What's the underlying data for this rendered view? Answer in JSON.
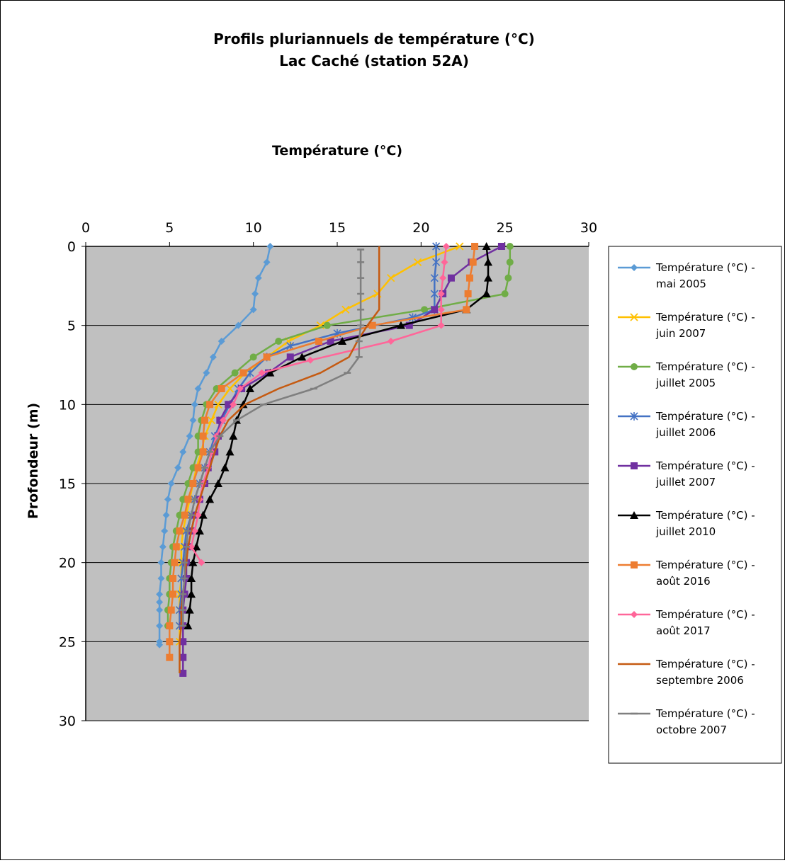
{
  "chart_data": {
    "type": "line",
    "title": [
      "Profils pluriannuels de température (°C)",
      "Lac Caché (station 52A)"
    ],
    "xlabel": "Température (°C)",
    "ylabel": "Profondeur (m)",
    "xlim": [
      0,
      30
    ],
    "ylim": [
      0,
      30
    ],
    "y_inverted": true,
    "x_axis_position": "top",
    "x_ticks": [
      "0",
      "5",
      "10",
      "15",
      "20",
      "25",
      "30"
    ],
    "y_ticks": [
      "0",
      "5",
      "10",
      "15",
      "20",
      "25",
      "30"
    ],
    "grid": "horizontal",
    "plot_background": "#c0c0c0",
    "legend_position": "right",
    "series": [
      {
        "name": [
          "Température (°C) -",
          "mai 2005"
        ],
        "color": "#5b9bd5",
        "marker": "diamond",
        "points": [
          [
            11.0,
            0
          ],
          [
            10.8,
            1
          ],
          [
            10.3,
            2
          ],
          [
            10.1,
            3
          ],
          [
            10.0,
            4
          ],
          [
            9.1,
            5
          ],
          [
            8.1,
            6
          ],
          [
            7.6,
            7
          ],
          [
            7.2,
            8
          ],
          [
            6.7,
            9
          ],
          [
            6.5,
            10
          ],
          [
            6.4,
            11
          ],
          [
            6.2,
            12
          ],
          [
            5.8,
            13
          ],
          [
            5.5,
            14
          ],
          [
            5.1,
            15
          ],
          [
            4.9,
            16
          ],
          [
            4.8,
            17
          ],
          [
            4.7,
            18
          ],
          [
            4.6,
            19
          ],
          [
            4.5,
            20
          ],
          [
            4.5,
            21
          ],
          [
            4.4,
            22
          ],
          [
            4.4,
            22.5
          ],
          [
            4.4,
            23
          ],
          [
            4.4,
            24
          ],
          [
            4.4,
            25
          ],
          [
            4.4,
            25.2
          ]
        ]
      },
      {
        "name": [
          "Température (°C) -",
          "juin 2007"
        ],
        "color": "#ffc000",
        "marker": "x",
        "points": [
          [
            22.3,
            0
          ],
          [
            19.8,
            1
          ],
          [
            18.2,
            2
          ],
          [
            17.4,
            3
          ],
          [
            15.5,
            4
          ],
          [
            14.0,
            5
          ],
          [
            12.1,
            6
          ],
          [
            10.8,
            7
          ],
          [
            9.5,
            8
          ],
          [
            8.6,
            9
          ],
          [
            7.9,
            10
          ],
          [
            7.5,
            11
          ],
          [
            7.1,
            12
          ],
          [
            6.9,
            13
          ],
          [
            6.6,
            14
          ],
          [
            6.4,
            15
          ],
          [
            6.2,
            16
          ],
          [
            6.0,
            17
          ],
          [
            5.8,
            18
          ],
          [
            5.7,
            19
          ],
          [
            5.7,
            20
          ],
          [
            5.7,
            21
          ],
          [
            5.6,
            22
          ],
          [
            5.6,
            23
          ],
          [
            5.6,
            24
          ],
          [
            5.6,
            25
          ]
        ]
      },
      {
        "name": [
          "Température (°C) -",
          "juillet 2005"
        ],
        "color": "#70ad47",
        "marker": "circle",
        "points": [
          [
            25.3,
            0
          ],
          [
            25.3,
            1
          ],
          [
            25.2,
            2
          ],
          [
            25.0,
            3
          ],
          [
            20.2,
            4
          ],
          [
            14.4,
            5
          ],
          [
            11.5,
            6
          ],
          [
            10.0,
            7
          ],
          [
            8.9,
            8
          ],
          [
            7.8,
            9
          ],
          [
            7.2,
            10
          ],
          [
            6.9,
            11
          ],
          [
            6.7,
            12
          ],
          [
            6.7,
            13
          ],
          [
            6.4,
            14
          ],
          [
            6.1,
            15
          ],
          [
            5.8,
            16
          ],
          [
            5.6,
            17
          ],
          [
            5.4,
            18
          ],
          [
            5.2,
            19
          ],
          [
            5.1,
            20
          ],
          [
            5.0,
            21
          ],
          [
            5.0,
            22
          ],
          [
            4.9,
            23
          ],
          [
            4.9,
            24
          ]
        ]
      },
      {
        "name": [
          "Température (°C) -",
          "juillet 2006"
        ],
        "color": "#4472c4",
        "marker": "star",
        "points": [
          [
            20.9,
            0
          ],
          [
            20.9,
            1
          ],
          [
            20.8,
            2
          ],
          [
            20.8,
            3
          ],
          [
            20.8,
            4
          ],
          [
            19.5,
            4.5
          ],
          [
            15.0,
            5.5
          ],
          [
            12.2,
            6.3
          ],
          [
            10.8,
            7.0
          ],
          [
            9.8,
            8
          ],
          [
            9.1,
            9
          ],
          [
            8.6,
            10
          ],
          [
            8.1,
            11
          ],
          [
            7.7,
            12
          ],
          [
            7.4,
            13
          ],
          [
            7.1,
            14
          ],
          [
            6.8,
            15
          ],
          [
            6.5,
            16
          ],
          [
            6.3,
            17
          ],
          [
            6.0,
            18
          ],
          [
            5.9,
            19
          ],
          [
            5.8,
            20
          ],
          [
            5.7,
            21
          ],
          [
            5.7,
            22
          ],
          [
            5.6,
            23
          ],
          [
            5.6,
            24
          ]
        ]
      },
      {
        "name": [
          "Température (°C) -",
          "juillet 2007"
        ],
        "color": "#7030a0",
        "marker": "square",
        "points": [
          [
            24.8,
            0
          ],
          [
            23.0,
            1
          ],
          [
            21.8,
            2
          ],
          [
            21.3,
            3
          ],
          [
            20.8,
            4
          ],
          [
            19.3,
            5
          ],
          [
            14.6,
            6
          ],
          [
            12.2,
            7
          ],
          [
            10.9,
            8
          ],
          [
            9.3,
            9
          ],
          [
            8.5,
            10
          ],
          [
            8.0,
            11
          ],
          [
            7.9,
            12
          ],
          [
            7.7,
            13
          ],
          [
            7.3,
            14
          ],
          [
            7.1,
            15
          ],
          [
            6.8,
            16
          ],
          [
            6.5,
            17
          ],
          [
            6.3,
            18
          ],
          [
            6.1,
            19
          ],
          [
            6.0,
            20
          ],
          [
            6.0,
            21
          ],
          [
            5.9,
            22
          ],
          [
            5.8,
            23
          ],
          [
            5.8,
            24
          ],
          [
            5.8,
            25
          ],
          [
            5.8,
            26
          ],
          [
            5.8,
            27
          ]
        ]
      },
      {
        "name": [
          "Température (°C) -",
          "juillet 2010"
        ],
        "color": "#000000",
        "marker": "triangle",
        "points": [
          [
            23.9,
            0
          ],
          [
            24.0,
            1
          ],
          [
            24.0,
            2
          ],
          [
            23.9,
            3
          ],
          [
            22.7,
            4
          ],
          [
            18.8,
            5
          ],
          [
            15.3,
            6
          ],
          [
            12.9,
            7
          ],
          [
            11.0,
            8
          ],
          [
            9.8,
            9
          ],
          [
            9.4,
            10
          ],
          [
            9.0,
            11
          ],
          [
            8.8,
            12
          ],
          [
            8.6,
            13
          ],
          [
            8.3,
            14
          ],
          [
            7.9,
            15
          ],
          [
            7.4,
            16
          ],
          [
            7.0,
            17
          ],
          [
            6.8,
            18
          ],
          [
            6.6,
            19
          ],
          [
            6.4,
            20
          ],
          [
            6.3,
            21
          ],
          [
            6.3,
            22
          ],
          [
            6.2,
            23
          ],
          [
            6.1,
            24
          ]
        ]
      },
      {
        "name": [
          "Température (°C) -",
          "août 2016"
        ],
        "color": "#ed7d31",
        "marker": "square",
        "points": [
          [
            23.2,
            0
          ],
          [
            23.1,
            1
          ],
          [
            22.9,
            2
          ],
          [
            22.8,
            3
          ],
          [
            22.7,
            4
          ],
          [
            17.1,
            5
          ],
          [
            13.9,
            6
          ],
          [
            10.8,
            7
          ],
          [
            9.4,
            8
          ],
          [
            8.1,
            9
          ],
          [
            7.4,
            10
          ],
          [
            7.1,
            11
          ],
          [
            7.0,
            12
          ],
          [
            7.0,
            13
          ],
          [
            6.7,
            14
          ],
          [
            6.4,
            15
          ],
          [
            6.1,
            16
          ],
          [
            5.9,
            17
          ],
          [
            5.6,
            18
          ],
          [
            5.4,
            19
          ],
          [
            5.3,
            20
          ],
          [
            5.2,
            21
          ],
          [
            5.2,
            22
          ],
          [
            5.1,
            23
          ],
          [
            5.0,
            24
          ],
          [
            5.0,
            25
          ],
          [
            5.0,
            26
          ]
        ]
      },
      {
        "name": [
          "Température (°C) -",
          "août 2017"
        ],
        "color": "#ff6699",
        "marker": "diamond",
        "points": [
          [
            21.5,
            0
          ],
          [
            21.4,
            1
          ],
          [
            21.3,
            2
          ],
          [
            21.2,
            3
          ],
          [
            21.2,
            4
          ],
          [
            21.2,
            5
          ],
          [
            18.2,
            6
          ],
          [
            13.4,
            7.2
          ],
          [
            10.5,
            8
          ],
          [
            9.2,
            9
          ],
          [
            8.8,
            10
          ],
          [
            8.2,
            11
          ],
          [
            7.8,
            12
          ],
          [
            7.5,
            13
          ],
          [
            7.3,
            14
          ],
          [
            7.0,
            15
          ],
          [
            6.8,
            16
          ],
          [
            6.7,
            17
          ],
          [
            6.5,
            18
          ],
          [
            6.3,
            19
          ],
          [
            6.9,
            20
          ]
        ]
      },
      {
        "name": [
          "Température (°C) -",
          "septembre 2006"
        ],
        "color": "#c55a11",
        "marker": "none",
        "points": [
          [
            17.5,
            0
          ],
          [
            17.5,
            1
          ],
          [
            17.5,
            2
          ],
          [
            17.5,
            3
          ],
          [
            17.5,
            4
          ],
          [
            16.8,
            5
          ],
          [
            16.2,
            6
          ],
          [
            15.7,
            7
          ],
          [
            14.0,
            8
          ],
          [
            11.5,
            9
          ],
          [
            9.5,
            10
          ],
          [
            8.5,
            11
          ],
          [
            8.0,
            12
          ],
          [
            7.7,
            13
          ],
          [
            7.4,
            14
          ],
          [
            7.1,
            15
          ],
          [
            6.8,
            16
          ],
          [
            6.5,
            17
          ],
          [
            6.3,
            18
          ],
          [
            6.1,
            19
          ],
          [
            6.0,
            20
          ],
          [
            5.9,
            21
          ],
          [
            5.8,
            22
          ],
          [
            5.7,
            23
          ],
          [
            5.7,
            24
          ],
          [
            5.6,
            25
          ],
          [
            5.6,
            26
          ],
          [
            5.6,
            27
          ]
        ]
      },
      {
        "name": [
          "Température (°C) -",
          "octobre 2007"
        ],
        "color": "#7f7f7f",
        "marker": "dash",
        "points": [
          [
            16.4,
            0.2
          ],
          [
            16.4,
            1
          ],
          [
            16.4,
            2
          ],
          [
            16.4,
            3
          ],
          [
            16.4,
            4
          ],
          [
            16.4,
            5
          ],
          [
            16.3,
            6
          ],
          [
            16.3,
            7
          ],
          [
            15.6,
            8
          ],
          [
            13.6,
            9
          ],
          [
            10.6,
            10
          ],
          [
            9.0,
            11
          ],
          [
            8.0,
            12
          ],
          [
            7.4,
            13
          ],
          [
            7.1,
            14
          ],
          [
            6.8,
            15
          ],
          [
            6.5,
            16
          ],
          [
            6.3,
            17
          ],
          [
            6.1,
            18
          ],
          [
            6.0,
            19
          ],
          [
            5.9,
            20
          ],
          [
            5.9,
            21
          ],
          [
            5.8,
            22
          ],
          [
            5.8,
            23
          ],
          [
            5.8,
            24
          ]
        ]
      }
    ]
  }
}
